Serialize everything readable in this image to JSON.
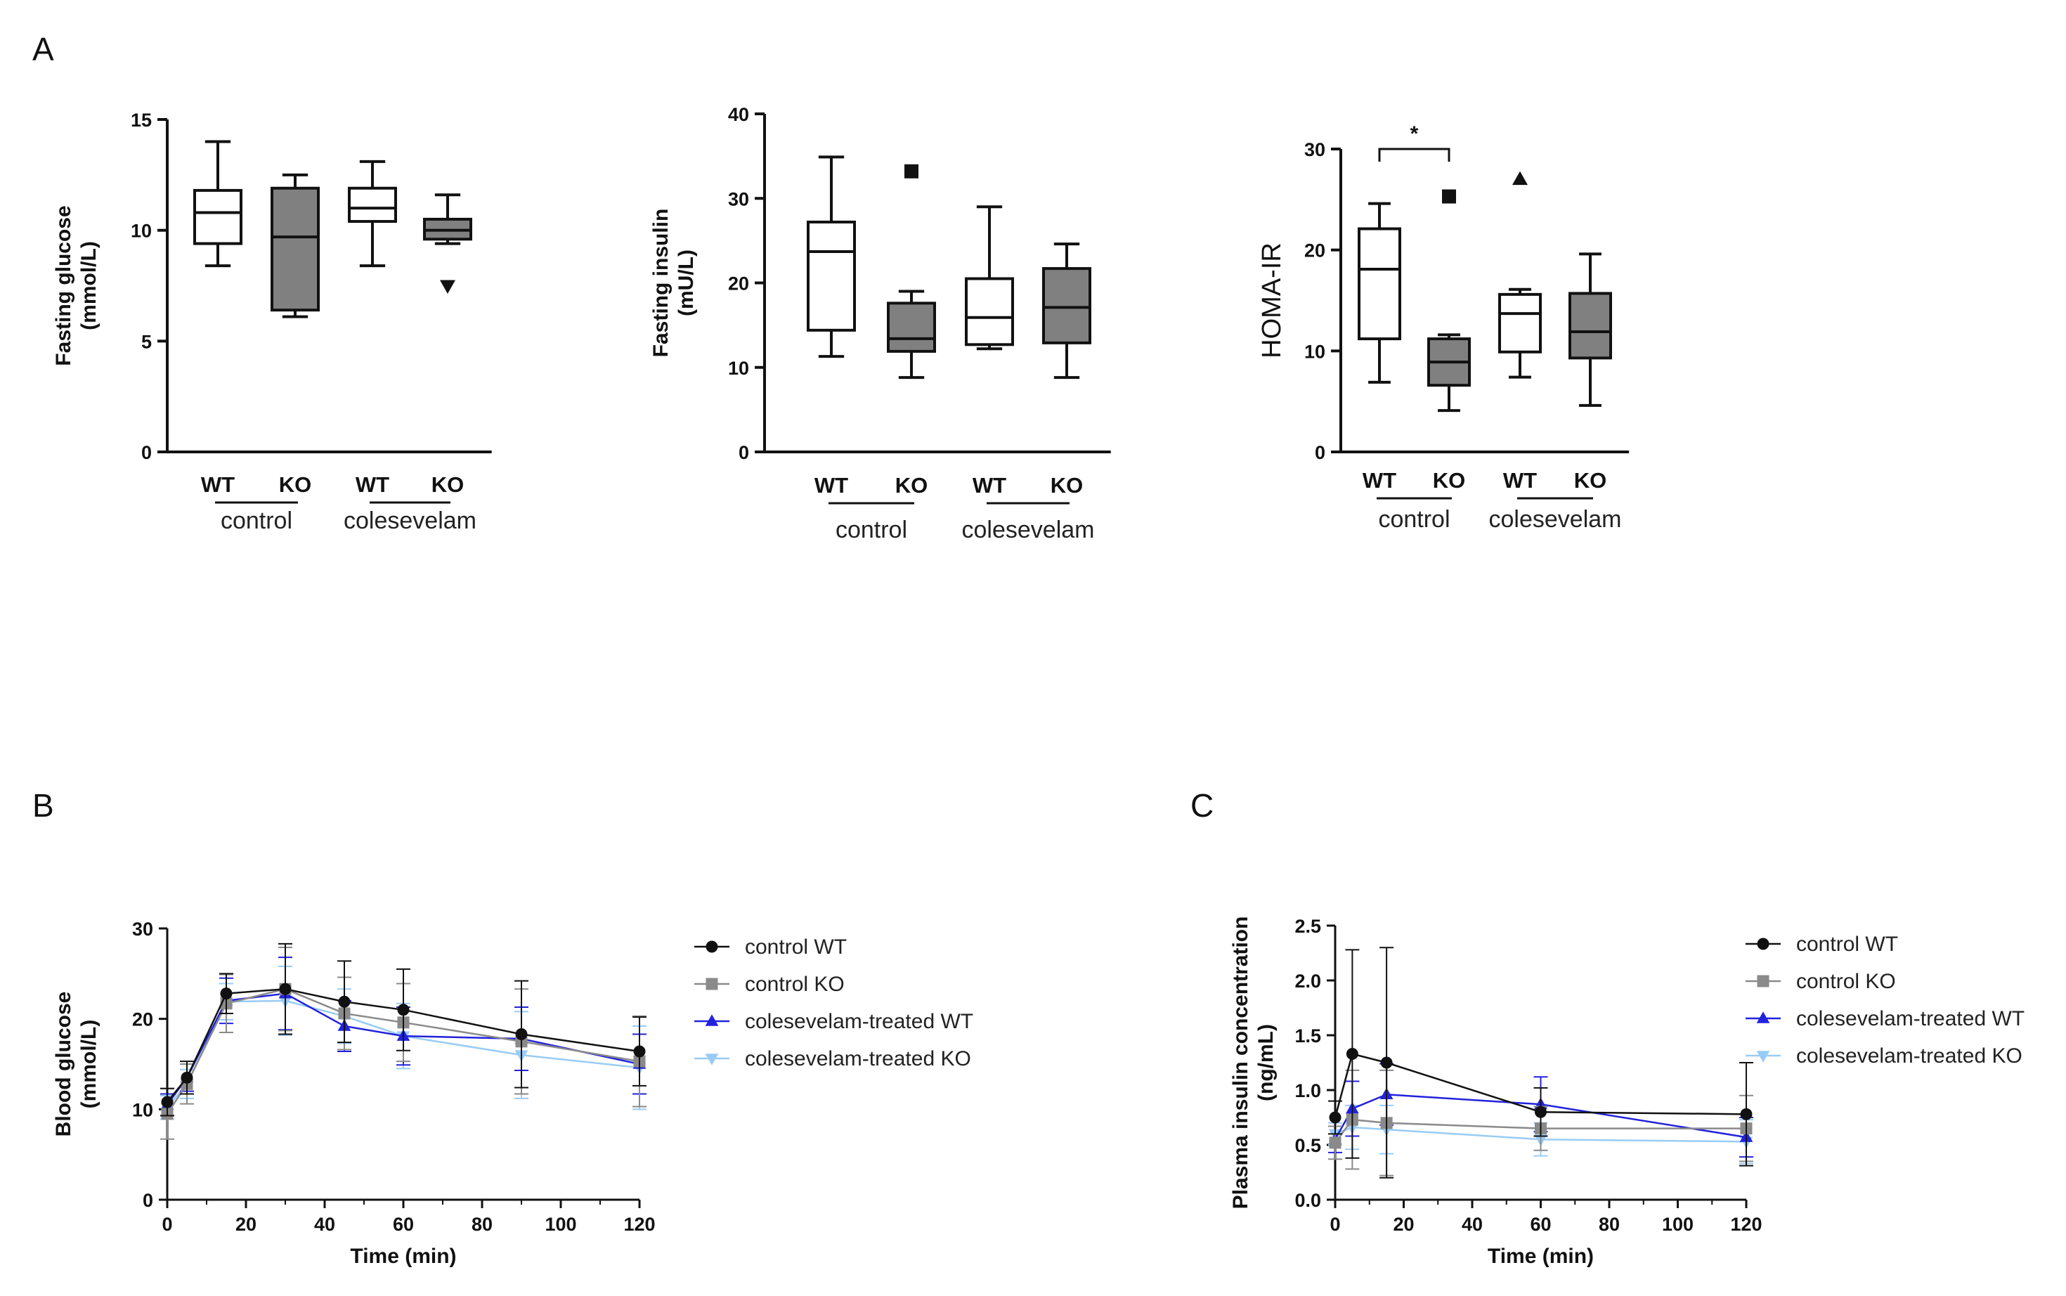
{
  "panels": {
    "A": "A",
    "B": "B",
    "C": "C"
  },
  "colors": {
    "axis": "#111111",
    "box_wt": "#ffffff",
    "box_ko": "#808080"
  },
  "chart_data": [
    {
      "type": "box",
      "title": "",
      "ylabel_lines": [
        "Fasting glucose",
        "(mmol/L)"
      ],
      "ylim": [
        0,
        15
      ],
      "yticks": [
        0,
        5,
        10,
        15
      ],
      "groups": [
        {
          "label": "control",
          "categories": [
            "WT",
            "KO"
          ]
        },
        {
          "label": "colesevelam",
          "categories": [
            "WT",
            "KO"
          ]
        }
      ],
      "boxes": [
        {
          "category": "WT",
          "group": "control",
          "fill": "#ffffff",
          "whisker_low": 8.4,
          "q1": 9.4,
          "median": 10.8,
          "q3": 11.8,
          "whisker_high": 14.0,
          "outliers": []
        },
        {
          "category": "KO",
          "group": "control",
          "fill": "#808080",
          "whisker_low": 6.1,
          "q1": 6.4,
          "median": 9.7,
          "q3": 11.9,
          "whisker_high": 12.5,
          "outliers": []
        },
        {
          "category": "WT",
          "group": "colesevelam",
          "fill": "#ffffff",
          "whisker_low": 8.4,
          "q1": 10.4,
          "median": 11.0,
          "q3": 11.9,
          "whisker_high": 13.1,
          "outliers": []
        },
        {
          "category": "KO",
          "group": "colesevelam",
          "fill": "#808080",
          "whisker_low": 9.4,
          "q1": 9.6,
          "median": 10.0,
          "q3": 10.5,
          "whisker_high": 11.6,
          "outliers": [
            {
              "value": 7.5,
              "marker": "triangle-down"
            }
          ]
        }
      ],
      "significance": []
    },
    {
      "type": "box",
      "title": "",
      "ylabel_lines": [
        "Fasting insulin",
        "(mU/L)"
      ],
      "ylim": [
        0,
        40
      ],
      "yticks": [
        0,
        10,
        20,
        30,
        40
      ],
      "groups": [
        {
          "label": "control",
          "categories": [
            "WT",
            "KO"
          ]
        },
        {
          "label": "colesevelam",
          "categories": [
            "WT",
            "KO"
          ]
        }
      ],
      "boxes": [
        {
          "category": "WT",
          "group": "control",
          "fill": "#ffffff",
          "whisker_low": 11.3,
          "q1": 14.4,
          "median": 23.7,
          "q3": 27.2,
          "whisker_high": 34.9,
          "outliers": []
        },
        {
          "category": "KO",
          "group": "control",
          "fill": "#808080",
          "whisker_low": 8.8,
          "q1": 11.9,
          "median": 13.4,
          "q3": 17.6,
          "whisker_high": 19.0,
          "outliers": [
            {
              "value": 33.2,
              "marker": "square"
            }
          ]
        },
        {
          "category": "WT",
          "group": "colesevelam",
          "fill": "#ffffff",
          "whisker_low": 12.2,
          "q1": 12.7,
          "median": 15.9,
          "q3": 20.5,
          "whisker_high": 29.0,
          "outliers": []
        },
        {
          "category": "KO",
          "group": "colesevelam",
          "fill": "#808080",
          "whisker_low": 8.8,
          "q1": 12.9,
          "median": 17.1,
          "q3": 21.7,
          "whisker_high": 24.6,
          "outliers": []
        }
      ],
      "significance": []
    },
    {
      "type": "box",
      "title": "",
      "ylabel_lines": [
        "HOMA-IR"
      ],
      "ylim": [
        0,
        30
      ],
      "yticks": [
        0,
        10,
        20,
        30
      ],
      "groups": [
        {
          "label": "control",
          "categories": [
            "WT",
            "KO"
          ]
        },
        {
          "label": "colesevelam",
          "categories": [
            "WT",
            "KO"
          ]
        }
      ],
      "boxes": [
        {
          "category": "WT",
          "group": "control",
          "fill": "#ffffff",
          "whisker_low": 6.9,
          "q1": 11.2,
          "median": 18.1,
          "q3": 22.1,
          "whisker_high": 24.6,
          "outliers": []
        },
        {
          "category": "KO",
          "group": "control",
          "fill": "#808080",
          "whisker_low": 4.1,
          "q1": 6.6,
          "median": 8.9,
          "q3": 11.2,
          "whisker_high": 11.6,
          "outliers": [
            {
              "value": 25.3,
              "marker": "square"
            }
          ]
        },
        {
          "category": "WT",
          "group": "colesevelam",
          "fill": "#ffffff",
          "whisker_low": 7.4,
          "q1": 9.9,
          "median": 13.7,
          "q3": 15.6,
          "whisker_high": 16.1,
          "outliers": [
            {
              "value": 27.0,
              "marker": "triangle-up"
            }
          ]
        },
        {
          "category": "KO",
          "group": "colesevelam",
          "fill": "#808080",
          "whisker_low": 4.6,
          "q1": 9.3,
          "median": 11.9,
          "q3": 15.7,
          "whisker_high": 19.6,
          "outliers": []
        }
      ],
      "significance": [
        {
          "from": 0,
          "to": 1,
          "label": "*"
        }
      ]
    },
    {
      "type": "line",
      "title": "",
      "xlabel": "Time (min)",
      "ylabel_lines": [
        "Blood glucose",
        "(mmol/L)"
      ],
      "xlim": [
        0,
        120
      ],
      "ylim": [
        0,
        30
      ],
      "xticks": [
        0,
        20,
        40,
        60,
        80,
        100,
        120
      ],
      "yticks": [
        0,
        10,
        20,
        30
      ],
      "legend_position": "right",
      "series": [
        {
          "name": "control WT",
          "color": "#111111",
          "marker": "circle",
          "x": [
            0,
            5,
            15,
            30,
            45,
            60,
            90,
            120
          ],
          "y": [
            10.8,
            13.5,
            22.8,
            23.3,
            21.9,
            21.0,
            18.3,
            16.4
          ],
          "err": [
            1.5,
            1.8,
            2.2,
            5.0,
            4.5,
            4.5,
            5.9,
            3.8
          ]
        },
        {
          "name": "control KO",
          "color": "#8a8a8a",
          "marker": "square",
          "x": [
            0,
            5,
            15,
            30,
            45,
            60,
            90,
            120
          ],
          "y": [
            9.5,
            12.8,
            21.7,
            23.3,
            20.6,
            19.6,
            17.5,
            15.3
          ],
          "err": [
            2.8,
            2.2,
            3.2,
            4.6,
            4.0,
            4.3,
            5.8,
            5.0
          ]
        },
        {
          "name": "colesevelam-treated WT",
          "color": "#2222dd",
          "marker": "triangle-up",
          "x": [
            0,
            5,
            15,
            30,
            45,
            60,
            90,
            120
          ],
          "y": [
            10.5,
            13.5,
            22.0,
            22.8,
            19.2,
            18.1,
            17.8,
            15.0
          ],
          "err": [
            1.2,
            1.5,
            2.5,
            4.0,
            2.8,
            3.2,
            3.5,
            3.3
          ]
        },
        {
          "name": "colesevelam-treated KO",
          "color": "#99ccf5",
          "marker": "triangle-down",
          "x": [
            0,
            5,
            15,
            30,
            45,
            60,
            90,
            120
          ],
          "y": [
            10.2,
            12.8,
            21.9,
            22.0,
            20.3,
            18.1,
            16.0,
            14.6
          ],
          "err": [
            1.3,
            1.6,
            2.0,
            3.8,
            3.0,
            3.6,
            4.8,
            4.6
          ]
        }
      ]
    },
    {
      "type": "line",
      "title": "",
      "xlabel": "Time (min)",
      "ylabel_lines": [
        "Plasma insulin concentration",
        "(ng/mL)"
      ],
      "xlim": [
        0,
        120
      ],
      "ylim": [
        0,
        2.5
      ],
      "xticks": [
        0,
        20,
        40,
        60,
        80,
        100,
        120
      ],
      "yticks": [
        "0.0",
        "0.5",
        "1.0",
        "1.5",
        "2.0",
        "2.5"
      ],
      "legend_position": "right",
      "series": [
        {
          "name": "control WT",
          "color": "#111111",
          "marker": "circle",
          "x": [
            0,
            5,
            15,
            60,
            120
          ],
          "y": [
            0.75,
            1.33,
            1.25,
            0.8,
            0.78
          ],
          "err": [
            0.15,
            0.95,
            1.05,
            0.22,
            0.47
          ]
        },
        {
          "name": "control KO",
          "color": "#8a8a8a",
          "marker": "square",
          "x": [
            0,
            5,
            15,
            60,
            120
          ],
          "y": [
            0.52,
            0.73,
            0.7,
            0.65,
            0.65
          ],
          "err": [
            0.15,
            0.45,
            0.48,
            0.2,
            0.3
          ]
        },
        {
          "name": "colesevelam-treated WT",
          "color": "#2222dd",
          "marker": "triangle-up",
          "x": [
            0,
            5,
            15,
            60,
            120
          ],
          "y": [
            0.55,
            0.83,
            0.96,
            0.87,
            0.57
          ],
          "err": [
            0.12,
            0.25,
            0.28,
            0.25,
            0.18
          ]
        },
        {
          "name": "colesevelam-treated KO",
          "color": "#99ccf5",
          "marker": "triangle-down",
          "x": [
            0,
            5,
            15,
            60,
            120
          ],
          "y": [
            0.6,
            0.66,
            0.64,
            0.55,
            0.53
          ],
          "err": [
            0.1,
            0.2,
            0.22,
            0.15,
            0.2
          ]
        }
      ]
    }
  ]
}
